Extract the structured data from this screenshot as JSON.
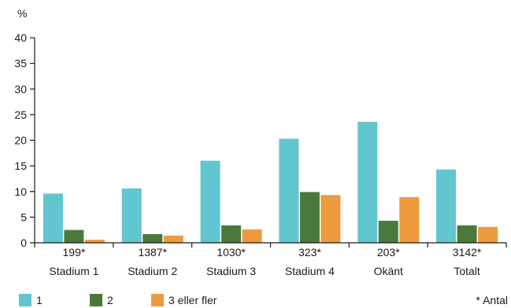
{
  "chart_data": {
    "type": "bar",
    "ylabel": "%",
    "ylim": [
      0,
      40
    ],
    "yticks": [
      0,
      5,
      10,
      15,
      20,
      25,
      30,
      35,
      40
    ],
    "grid": false,
    "legend_position": "bottom",
    "categories": [
      {
        "count": "199*",
        "label": "Stadium 1"
      },
      {
        "count": "1387*",
        "label": "Stadium 2"
      },
      {
        "count": "1030*",
        "label": "Stadium 3"
      },
      {
        "count": "323*",
        "label": "Stadium 4"
      },
      {
        "count": "203*",
        "label": "Okänt"
      },
      {
        "count": "3142*",
        "label": "Totalt"
      }
    ],
    "series": [
      {
        "name": "1",
        "color": "#62c6d1",
        "values": [
          9.6,
          10.6,
          16.0,
          20.3,
          23.6,
          14.3
        ]
      },
      {
        "name": "2",
        "color": "#4a7a3b",
        "values": [
          2.5,
          1.7,
          3.4,
          9.9,
          4.3,
          3.4
        ]
      },
      {
        "name": "3 eller fler",
        "color": "#ed9b3c",
        "values": [
          0.6,
          1.4,
          2.6,
          9.3,
          8.9,
          3.1
        ]
      }
    ],
    "footnote": "* Antal"
  }
}
